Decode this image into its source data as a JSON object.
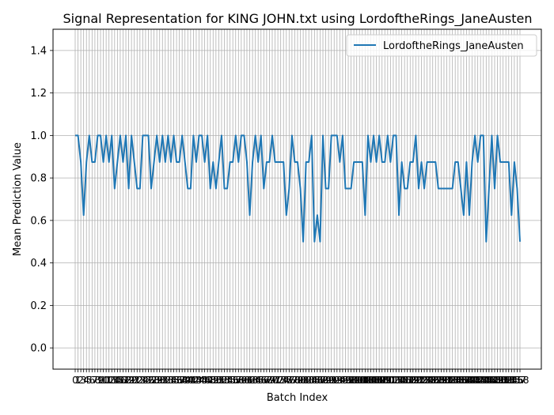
{
  "chart_data": {
    "type": "line",
    "title": "Signal Representation for KING JOHN.txt using LordoftheRings_JaneAusten",
    "xlabel": "Batch Index",
    "ylabel": "Mean Prediction Value",
    "ylim": [
      -0.1,
      1.5
    ],
    "yticks": [
      "0.0",
      "0.2",
      "0.4",
      "0.6",
      "0.8",
      "1.0",
      "1.2",
      "1.4"
    ],
    "grid": true,
    "legend_position": "top-right",
    "series": [
      {
        "name": "LordoftheRings_JaneAusten",
        "color": "#1f77b4",
        "values": [
          1.0,
          1.0,
          0.875,
          0.625,
          0.875,
          1.0,
          0.875,
          0.875,
          1.0,
          1.0,
          0.875,
          1.0,
          0.875,
          1.0,
          0.75,
          0.875,
          1.0,
          0.875,
          1.0,
          0.75,
          1.0,
          0.875,
          0.75,
          0.75,
          1.0,
          1.0,
          1.0,
          0.75,
          0.875,
          1.0,
          0.875,
          1.0,
          0.875,
          1.0,
          0.875,
          1.0,
          0.875,
          0.875,
          1.0,
          0.875,
          0.75,
          0.75,
          1.0,
          0.875,
          1.0,
          1.0,
          0.875,
          1.0,
          0.75,
          0.875,
          0.75,
          0.875,
          1.0,
          0.75,
          0.75,
          0.875,
          0.875,
          1.0,
          0.875,
          1.0,
          1.0,
          0.875,
          0.625,
          0.875,
          1.0,
          0.875,
          1.0,
          0.75,
          0.875,
          0.875,
          1.0,
          0.875,
          0.875,
          0.875,
          0.875,
          0.625,
          0.75,
          1.0,
          0.875,
          0.875,
          0.75,
          0.5,
          0.875,
          0.875,
          1.0,
          0.5,
          0.625,
          0.5,
          1.0,
          0.75,
          0.75,
          1.0,
          1.0,
          1.0,
          0.875,
          1.0,
          0.75,
          0.75,
          0.75,
          0.875,
          0.875,
          0.875,
          0.875,
          0.625,
          1.0,
          0.875,
          1.0,
          0.875,
          1.0,
          0.875,
          0.875,
          1.0,
          0.875,
          1.0,
          1.0,
          0.625,
          0.875,
          0.75,
          0.75,
          0.875,
          0.875,
          1.0,
          0.75,
          0.875,
          0.75,
          0.875,
          0.875,
          0.875,
          0.875,
          0.75,
          0.75,
          0.75,
          0.75,
          0.75,
          0.75,
          0.875,
          0.875,
          0.75,
          0.625,
          0.875,
          0.625,
          0.875,
          1.0,
          0.875,
          1.0,
          1.0,
          0.5,
          0.75,
          1.0,
          0.75,
          1.0,
          0.875,
          0.875,
          0.875,
          0.875,
          0.625,
          0.875,
          0.75,
          0.5
        ]
      }
    ]
  }
}
